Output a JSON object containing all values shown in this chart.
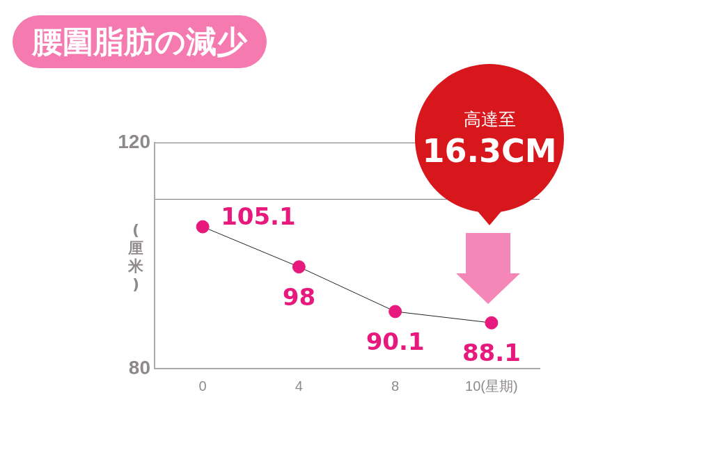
{
  "chart_data": {
    "type": "line",
    "title": "腰圍脂肪の減少",
    "ylabel": "(厘米)",
    "categories": [
      "0",
      "4",
      "8",
      "10(星期)"
    ],
    "series": [
      {
        "color": "#e8197d",
        "values": [
          105.1,
          98,
          90.1,
          88.1
        ]
      }
    ],
    "ylim": [
      80,
      120
    ],
    "yticks": [
      80,
      {
        "value": 110,
        "label": null
      },
      120
    ],
    "grid": "y",
    "marker": "circle",
    "line_style": "solid",
    "legend": false,
    "data_labels": true,
    "annotations": [
      "高達至",
      "16.3CM"
    ]
  }
}
